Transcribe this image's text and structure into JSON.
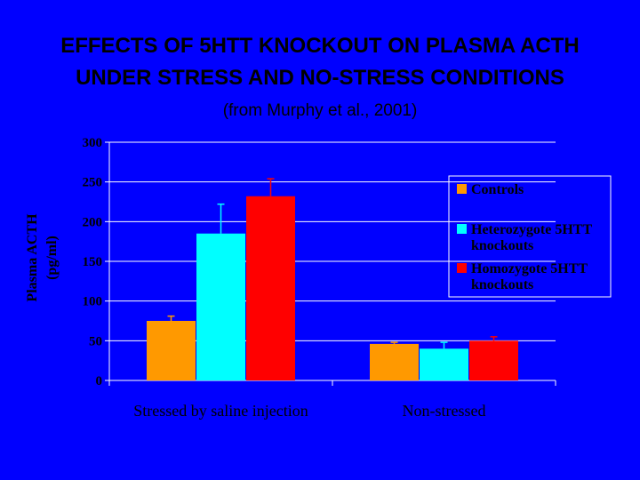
{
  "slide": {
    "title_line1": "EFFECTS OF 5HTT KNOCKOUT ON PLASMA ACTH",
    "title_line2": "UNDER STRESS AND NO-STRESS CONDITIONS",
    "subtitle": "(from Murphy et al., 2001)"
  },
  "colors": {
    "background": "#0000ff",
    "text": "#000000",
    "axis": "#ffffff"
  },
  "chart_data": {
    "type": "bar",
    "title": "EFFECTS OF 5HTT KNOCKOUT ON PLASMA ACTH UNDER STRESS AND NO-STRESS CONDITIONS",
    "ylabel_line1": "Plasma ACTH",
    "ylabel_line2": "(pg/ml)",
    "xlabel": "",
    "ylim": [
      0,
      300
    ],
    "yticks": [
      "0",
      "50",
      "100",
      "150",
      "200",
      "250",
      "300"
    ],
    "grid": true,
    "categories": [
      "Stressed by saline injection",
      "Non-stressed"
    ],
    "legend_position": "right",
    "series": [
      {
        "name": "Controls",
        "legend_lines": [
          "Controls"
        ],
        "color": "#ff9900",
        "values": [
          75,
          46
        ],
        "errors": [
          6,
          2
        ]
      },
      {
        "name": "Heterozygote 5HTT knockouts",
        "legend_lines": [
          "Heterozygote 5HTT",
          "knockouts"
        ],
        "color": "#00ffff",
        "values": [
          185,
          40
        ],
        "errors": [
          37,
          8
        ]
      },
      {
        "name": "Homozygote 5HTT knockouts",
        "legend_lines": [
          "Homozygote 5HTT",
          "knockouts"
        ],
        "color": "#ff0000",
        "values": [
          232,
          50
        ],
        "errors": [
          22,
          5
        ]
      }
    ]
  }
}
